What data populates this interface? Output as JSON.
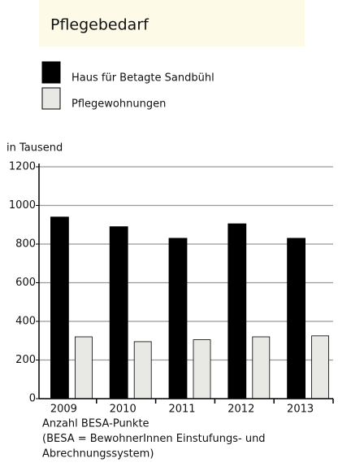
{
  "chart_data": {
    "type": "bar",
    "title": "Pflegebedarf",
    "y_unit": "in Tausend",
    "categories": [
      "2009",
      "2010",
      "2011",
      "2012",
      "2013"
    ],
    "series": [
      {
        "name": "Haus für Betagte Sandbühl",
        "color": "#000000",
        "values": [
          940,
          890,
          830,
          905,
          830
        ]
      },
      {
        "name": "Pflegewohnungen",
        "color": "#e8e8e4",
        "values": [
          320,
          295,
          305,
          320,
          325
        ]
      }
    ],
    "ylim": [
      0,
      1200
    ],
    "yticks": [
      0,
      200,
      400,
      600,
      800,
      1000,
      1200
    ],
    "grid": true,
    "notes": [
      "Anzahl BESA-Punkte",
      "(BESA = BewohnerInnen Einstufungs- und",
      "Abrechnungssystem)"
    ]
  }
}
